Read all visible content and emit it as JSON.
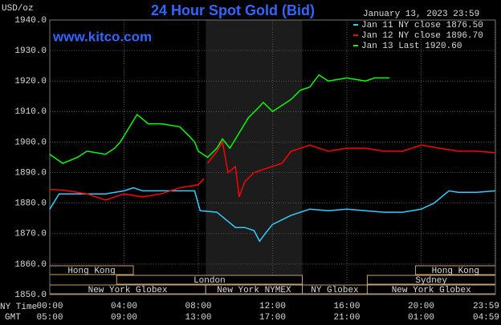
{
  "chart_data": {
    "type": "line",
    "title": "24 Hour Spot Gold (Bid)",
    "subtitle": "January 13, 2023 23:59",
    "watermark": "www.kitco.com",
    "y_label": "USD/oz",
    "x_label": "NY Time",
    "x2_label": "GMT",
    "xlim": [
      0,
      24
    ],
    "ylim": [
      1850,
      1940
    ],
    "xticks": [
      {
        "value": 0,
        "label": "00:00"
      },
      {
        "value": 4,
        "label": "04:00"
      },
      {
        "value": 8,
        "label": "08:00"
      },
      {
        "value": 12,
        "label": "12:00"
      },
      {
        "value": 16,
        "label": "16:00"
      },
      {
        "value": 20,
        "label": "20:00"
      },
      {
        "value": 23.983,
        "label": "23:59"
      }
    ],
    "x2ticks": [
      {
        "value": 0,
        "label": "05:00"
      },
      {
        "value": 4,
        "label": "09:00"
      },
      {
        "value": 8,
        "label": "13:00"
      },
      {
        "value": 12,
        "label": "17:00"
      },
      {
        "value": 16,
        "label": "21:00"
      },
      {
        "value": 20,
        "label": "01:00"
      },
      {
        "value": 23.983,
        "label": "04:59"
      }
    ],
    "yticks": [
      {
        "value": 1940,
        "label": "1940.0"
      },
      {
        "value": 1930,
        "label": "1930.0"
      },
      {
        "value": 1920,
        "label": "1920.0"
      },
      {
        "value": 1910,
        "label": "1910.0"
      },
      {
        "value": 1900,
        "label": "1900.0"
      },
      {
        "value": 1890,
        "label": "1890.0"
      },
      {
        "value": 1880,
        "label": "1880.0"
      },
      {
        "value": 1870,
        "label": "1870.0"
      },
      {
        "value": 1860,
        "label": "1860.0"
      },
      {
        "value": 1850,
        "label": "1850.0"
      }
    ],
    "grid": true,
    "highlight": [
      8.4,
      13.6
    ],
    "sessions": [
      [
        {
          "label": "Hong Kong",
          "start": 0,
          "end": 4.5
        },
        {
          "label": "Hong Kong",
          "start": 19.7,
          "end": 24
        }
      ],
      [
        {
          "label": "London",
          "start": 3.6,
          "end": 13.6
        },
        {
          "label": "Sydney",
          "start": 17.1,
          "end": 24
        }
      ],
      [
        {
          "label": "New York Globex",
          "start": 0,
          "end": 8.4
        },
        {
          "label": "New York NYMEX",
          "start": 8.4,
          "end": 13.6
        },
        {
          "label": "NY Globex",
          "start": 13.6,
          "end": 17.1
        },
        {
          "label": "New York Globex",
          "start": 17.1,
          "end": 24
        }
      ]
    ],
    "series": [
      {
        "name": "Jan 11 NY close 1876.50",
        "color": "#33ccff",
        "x": [
          0,
          0.5,
          1,
          2,
          3,
          4,
          4.5,
          5,
          6,
          7,
          7.8,
          8.1,
          9,
          10,
          10.5,
          11,
          11.3,
          11.6,
          12,
          13,
          14,
          15,
          16,
          17,
          18,
          19,
          19.5,
          20,
          20.7,
          21.5,
          22,
          23,
          24
        ],
        "values": [
          1878,
          1883,
          1883,
          1883,
          1883,
          1884,
          1885,
          1884,
          1884,
          1884,
          1884,
          1877.5,
          1877,
          1872,
          1872,
          1871,
          1867.5,
          1870,
          1873,
          1876,
          1878,
          1877.5,
          1878,
          1877.5,
          1877,
          1877,
          1877.5,
          1878,
          1880,
          1884,
          1883.5,
          1883.5,
          1884
        ]
      },
      {
        "name": "Jan 12 NY close 1896.70",
        "color": "#ff0000",
        "x": [
          0,
          1,
          2,
          3,
          4,
          5,
          6,
          7,
          8,
          8.3,
          8.4,
          8.5,
          9,
          9.3,
          9.6,
          10,
          10.2,
          10.5,
          11,
          11.5,
          12,
          12.5,
          13,
          13.5,
          14,
          15,
          16,
          17,
          18,
          19,
          20,
          21,
          22,
          23,
          24
        ],
        "values": [
          1884.5,
          1884,
          1883,
          1881,
          1883,
          1882,
          1883,
          1885,
          1886,
          1888,
          null,
          1893,
          1897,
          1900,
          1890,
          1892,
          1882,
          1887,
          1890,
          1891,
          1892,
          1893,
          1897,
          1898,
          1899,
          1897,
          1898,
          1898,
          1897,
          1897,
          1899,
          1898,
          1897,
          1897,
          1896.5
        ]
      },
      {
        "name": "Jan 13 Last 1920.60",
        "color": "#00ff00",
        "x": [
          0,
          0.7,
          1.5,
          2,
          3,
          3.5,
          3.8,
          4.3,
          4.7,
          5.3,
          6,
          7,
          7.5,
          7.8,
          8,
          8.5,
          9,
          9.3,
          9.7,
          10.2,
          10.7,
          11.2,
          11.5,
          12,
          12.5,
          13,
          13.5,
          14,
          14.5,
          15,
          16,
          17,
          17.5,
          18.3
        ],
        "values": [
          1896,
          1893,
          1895,
          1897,
          1896,
          1898,
          1900,
          1905,
          1909,
          1906,
          1906,
          1905,
          1902,
          1900,
          1897,
          1895,
          1898,
          1901,
          1898,
          1903,
          1908,
          1911,
          1913,
          1910,
          1912,
          1914,
          1917,
          1918,
          1922,
          1920,
          1921,
          1920,
          1921,
          1921
        ]
      }
    ]
  }
}
